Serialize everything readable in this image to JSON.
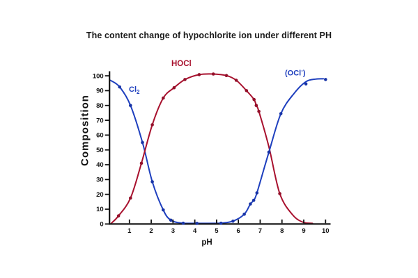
{
  "chart_data": {
    "type": "line",
    "title": "The content change of hypochlorite ion under different PH",
    "xlabel": "pH",
    "ylabel": "Composition",
    "xlim": [
      0,
      10.2
    ],
    "ylim": [
      0,
      102
    ],
    "x_ticks": [
      1,
      2,
      3,
      4,
      5,
      6,
      7,
      8,
      9,
      10
    ],
    "y_ticks": [
      0,
      10,
      20,
      30,
      40,
      50,
      60,
      70,
      80,
      90,
      100
    ],
    "grid": false,
    "legend": "inline-curve-labels",
    "axis_color": "#111111",
    "tick_text_color": "#111111",
    "series": [
      {
        "name": "Cl2",
        "color": "#1e3fbe",
        "marker_color": "#1733a6",
        "line_points": [
          [
            0.12,
            97
          ],
          [
            0.55,
            92.5
          ],
          [
            1.05,
            80
          ],
          [
            1.6,
            55
          ],
          [
            2.05,
            28.5
          ],
          [
            2.55,
            9.5
          ],
          [
            2.9,
            2.6
          ],
          [
            3.47,
            0.5
          ],
          [
            4.1,
            0.3
          ],
          [
            5.2,
            0.5
          ]
        ],
        "marker_points": [
          [
            0.55,
            92.5
          ],
          [
            1.05,
            80
          ],
          [
            1.6,
            55
          ],
          [
            2.05,
            28.5
          ],
          [
            2.55,
            9.5
          ],
          [
            2.9,
            2.6
          ],
          [
            3.47,
            0.5
          ],
          [
            4.1,
            0.3
          ],
          [
            5.2,
            0.5
          ]
        ]
      },
      {
        "name": "HOCl",
        "color": "#a8112e",
        "marker_color": "#930f29",
        "line_points": [
          [
            0.17,
            0.5
          ],
          [
            0.5,
            5.5
          ],
          [
            1.05,
            17.5
          ],
          [
            1.55,
            41
          ],
          [
            2.05,
            67
          ],
          [
            2.55,
            85
          ],
          [
            3.05,
            92
          ],
          [
            3.55,
            97.5
          ],
          [
            4.2,
            100.8
          ],
          [
            4.85,
            101.2
          ],
          [
            5.45,
            100.2
          ],
          [
            5.9,
            97
          ],
          [
            6.37,
            90
          ],
          [
            6.72,
            84
          ],
          [
            6.82,
            80
          ],
          [
            6.94,
            76
          ],
          [
            7.4,
            52
          ],
          [
            7.9,
            20.5
          ],
          [
            8.5,
            6
          ],
          [
            9.0,
            1
          ],
          [
            9.4,
            0.2
          ]
        ],
        "marker_points": [
          [
            0.5,
            5.5
          ],
          [
            1.05,
            17.5
          ],
          [
            1.55,
            41
          ],
          [
            2.05,
            67
          ],
          [
            2.55,
            85
          ],
          [
            3.05,
            92
          ],
          [
            3.55,
            97.5
          ],
          [
            4.2,
            100.8
          ],
          [
            4.85,
            101.2
          ],
          [
            5.45,
            100.2
          ],
          [
            5.9,
            97
          ],
          [
            6.37,
            90
          ],
          [
            6.72,
            84
          ],
          [
            6.82,
            80
          ],
          [
            6.94,
            76
          ],
          [
            7.9,
            20.5
          ]
        ]
      },
      {
        "name": "OCl-",
        "color": "#1e3fbe",
        "marker_color": "#1733a6",
        "line_points": [
          [
            5.2,
            0.5
          ],
          [
            5.75,
            1.9
          ],
          [
            6.27,
            6.6
          ],
          [
            6.55,
            13.5
          ],
          [
            6.7,
            16
          ],
          [
            6.85,
            21
          ],
          [
            7.4,
            48.5
          ],
          [
            7.95,
            74.5
          ],
          [
            8.55,
            88
          ],
          [
            9.1,
            96
          ],
          [
            9.55,
            97.8
          ],
          [
            9.9,
            98
          ]
        ],
        "marker_points": [
          [
            5.75,
            1.9
          ],
          [
            6.27,
            6.6
          ],
          [
            6.55,
            13.5
          ],
          [
            6.7,
            16
          ],
          [
            6.85,
            21
          ],
          [
            7.4,
            48.5
          ],
          [
            7.95,
            74.5
          ],
          [
            9.1,
            94.5
          ],
          [
            10,
            97.5
          ]
        ]
      }
    ],
    "annotations": {
      "cl2": {
        "text": "Cl",
        "sub": "2"
      },
      "hocl": {
        "text": "HOCl"
      },
      "ocl": {
        "pre": "(OCl",
        "sup": "-",
        "post": ")"
      }
    }
  }
}
